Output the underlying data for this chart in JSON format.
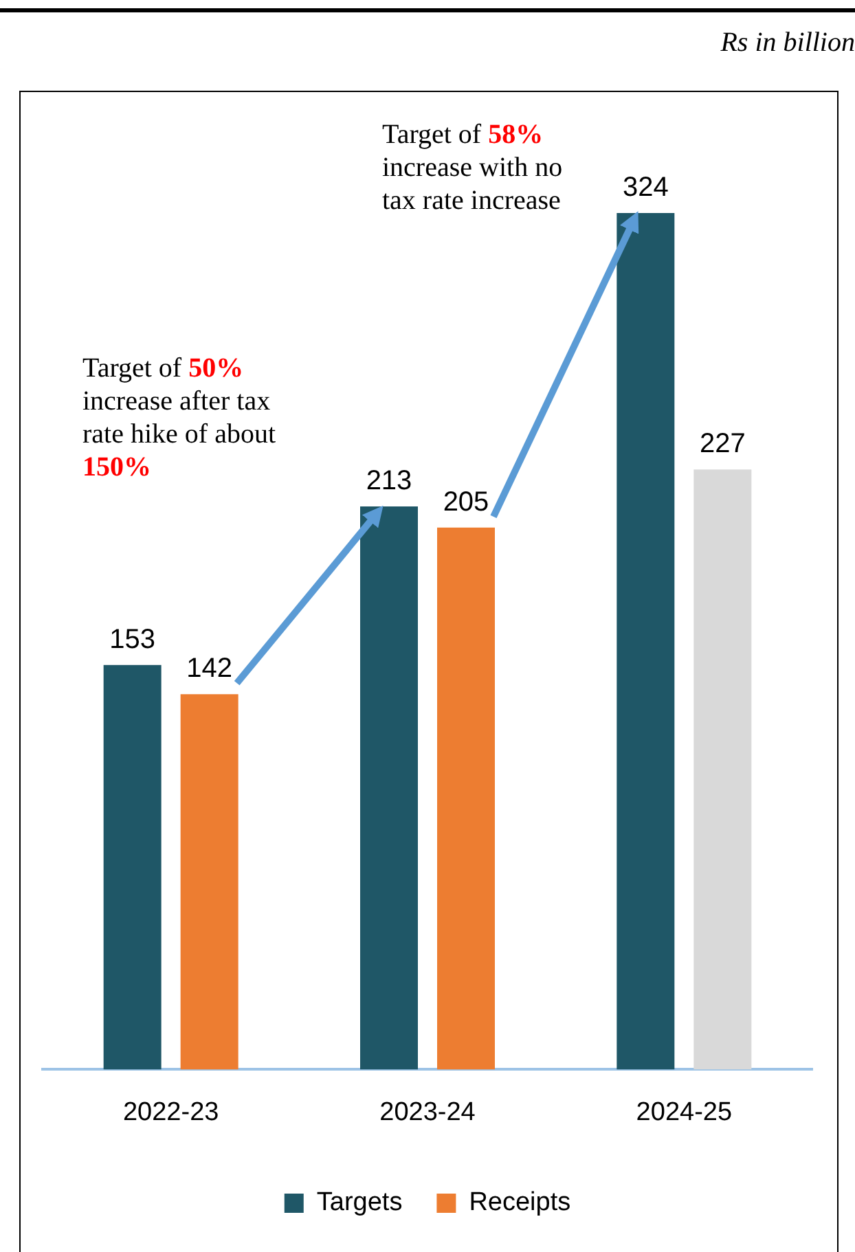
{
  "chart_data": {
    "type": "bar",
    "categories": [
      "2022-23",
      "2023-24",
      "2024-25"
    ],
    "series": [
      {
        "name": "Targets",
        "color": "#1f5767",
        "values": [
          153,
          213,
          324
        ]
      },
      {
        "name": "Receipts",
        "color": "#ed7d31",
        "colors": [
          "#ed7d31",
          "#ed7d31",
          "#d9d9d9"
        ],
        "values": [
          142,
          205,
          227
        ]
      }
    ],
    "data_labels": true,
    "legend": "bottom",
    "grid": false,
    "annotations": [
      "Rs in billion",
      "Target of 50% increase after tax rate hike of about 150%",
      "Target of 58% increase with no tax rate increase"
    ]
  }
}
